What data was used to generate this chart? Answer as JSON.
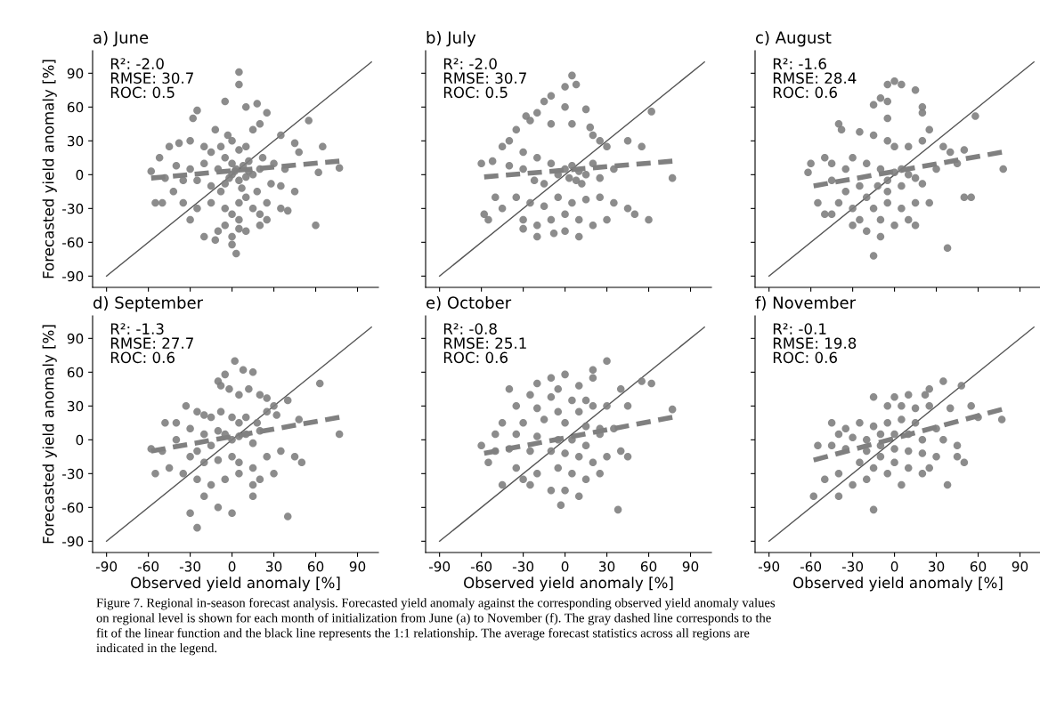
{
  "chart_data": [
    {
      "type": "scatter",
      "title": "a) June",
      "ylabel": "Forecasted yield anomaly [%]",
      "annotations": [
        "R²: -2.0\nRMSE: 30.7\nROC: 0.5"
      ],
      "xlim": [
        -100,
        105
      ],
      "ylim": [
        -100,
        110
      ],
      "xticks": [
        -90,
        -60,
        -30,
        0,
        30,
        60,
        90
      ],
      "yticks": [
        -90,
        -60,
        -30,
        0,
        30,
        60,
        90
      ],
      "tick_labels": "y",
      "grid": false,
      "legend": false,
      "series": [
        {
          "marker": "circle",
          "color": "#808080",
          "x": [
            5,
            5,
            -25,
            -28,
            -5,
            10,
            18,
            25,
            20,
            15,
            -12,
            -3,
            35,
            55,
            65,
            45,
            48,
            -45,
            -38,
            -30,
            -20,
            -15,
            -8,
            0,
            5,
            10,
            -5,
            0,
            3,
            8,
            12,
            -10,
            -20,
            -30,
            -40,
            -58,
            -52,
            -48,
            -25,
            -15,
            -5,
            5,
            10,
            15,
            20,
            28,
            35,
            45,
            62,
            77,
            -55,
            -50,
            -35,
            -25,
            -15,
            -5,
            0,
            5,
            10,
            15,
            20,
            25,
            35,
            40,
            60,
            -30,
            -10,
            -5,
            0,
            5,
            10,
            20,
            25,
            -20,
            -12,
            0,
            3,
            5,
            0,
            2,
            -2,
            7,
            12,
            -8,
            18,
            22,
            30,
            38,
            -35,
            -42
          ],
          "values": [
            91,
            80,
            57,
            50,
            65,
            60,
            63,
            55,
            45,
            40,
            40,
            35,
            35,
            48,
            25,
            28,
            20,
            25,
            28,
            30,
            25,
            20,
            25,
            30,
            22,
            25,
            15,
            10,
            5,
            8,
            3,
            5,
            10,
            5,
            8,
            3,
            15,
            -3,
            -5,
            -10,
            -8,
            -5,
            -2,
            0,
            5,
            -8,
            -10,
            -15,
            2,
            6,
            -25,
            -25,
            -25,
            -30,
            -25,
            -30,
            -35,
            -25,
            -20,
            -30,
            -35,
            -25,
            -30,
            -32,
            -45,
            -40,
            -50,
            -45,
            -55,
            -48,
            -50,
            -45,
            -40,
            -55,
            -58,
            -62,
            -70,
            -40,
            0,
            3,
            -3,
            -12,
            12,
            -15,
            -15,
            15,
            10,
            5,
            -5,
            -15
          ]
        },
        {
          "type": "line",
          "line_style": "dashed",
          "color": "#808080",
          "x": [
            -58,
            77
          ],
          "values": [
            -3,
            12
          ]
        },
        {
          "type": "line",
          "line_style": "solid",
          "color": "#555555",
          "x": [
            -90,
            100
          ],
          "values": [
            -90,
            100
          ]
        }
      ]
    },
    {
      "type": "scatter",
      "title": "b) July",
      "annotations": [
        "R²: -2.0\nRMSE: 30.7\nROC: 0.5"
      ],
      "xlim": [
        -100,
        105
      ],
      "ylim": [
        -100,
        110
      ],
      "xticks": [
        -90,
        -60,
        -30,
        0,
        30,
        60,
        90
      ],
      "yticks": [
        -90,
        -60,
        -30,
        0,
        30,
        60,
        90
      ],
      "tick_labels": false,
      "grid": false,
      "legend": false,
      "series": [
        {
          "marker": "circle",
          "color": "#808080",
          "x": [
            5,
            0,
            8,
            -10,
            -15,
            0,
            15,
            -20,
            -28,
            -25,
            -10,
            5,
            18,
            20,
            25,
            30,
            45,
            55,
            62,
            -35,
            -40,
            -45,
            -30,
            -20,
            -10,
            0,
            5,
            10,
            15,
            20,
            -5,
            3,
            8,
            12,
            -52,
            -60,
            -40,
            -30,
            -22,
            -15,
            25,
            35,
            77,
            -50,
            -45,
            -35,
            -25,
            -15,
            -5,
            5,
            15,
            25,
            35,
            50,
            -58,
            -55,
            -30,
            -20,
            -10,
            0,
            10,
            20,
            30,
            60,
            -20,
            -8,
            0,
            10,
            -30,
            45
          ],
          "values": [
            88,
            78,
            80,
            70,
            65,
            60,
            58,
            55,
            52,
            48,
            45,
            45,
            42,
            35,
            30,
            25,
            30,
            25,
            56,
            40,
            30,
            25,
            20,
            15,
            10,
            5,
            8,
            3,
            0,
            10,
            0,
            -3,
            -5,
            -8,
            12,
            10,
            8,
            5,
            -5,
            -8,
            -3,
            5,
            -3,
            -20,
            -30,
            -20,
            -25,
            -28,
            -20,
            -25,
            -22,
            -20,
            -25,
            -35,
            -35,
            -40,
            -40,
            -45,
            -40,
            -35,
            -40,
            -45,
            -40,
            -40,
            -55,
            -52,
            -50,
            -55,
            -48,
            -30
          ]
        },
        {
          "type": "line",
          "line_style": "dashed",
          "color": "#808080",
          "x": [
            -58,
            77
          ],
          "values": [
            -2,
            12
          ]
        },
        {
          "type": "line",
          "line_style": "solid",
          "color": "#555555",
          "x": [
            -90,
            100
          ],
          "values": [
            -90,
            100
          ]
        }
      ]
    },
    {
      "type": "scatter",
      "title": "c) August",
      "annotations": [
        "R²: -1.6\nRMSE: 28.4\nROC: 0.6"
      ],
      "xlim": [
        -100,
        105
      ],
      "ylim": [
        -100,
        110
      ],
      "xticks": [
        -90,
        -60,
        -30,
        0,
        30,
        60,
        90
      ],
      "yticks": [
        -90,
        -60,
        -30,
        0,
        30,
        60,
        90
      ],
      "tick_labels": false,
      "grid": false,
      "legend": false,
      "series": [
        {
          "marker": "circle",
          "color": "#808080",
          "x": [
            0,
            5,
            -5,
            15,
            -10,
            -15,
            -5,
            20,
            20,
            -5,
            -40,
            -38,
            -25,
            -15,
            -5,
            0,
            10,
            20,
            25,
            35,
            40,
            50,
            58,
            -50,
            -45,
            -35,
            -30,
            -20,
            -10,
            0,
            5,
            10,
            15,
            -5,
            -12,
            -60,
            -62,
            -45,
            -35,
            -25,
            -20,
            -5,
            5,
            20,
            30,
            45,
            78,
            -55,
            -40,
            -30,
            -15,
            -5,
            5,
            15,
            25,
            -50,
            -45,
            -25,
            -10,
            0,
            10,
            -20,
            -10,
            -15,
            38,
            50,
            55,
            -30,
            15
          ],
          "values": [
            83,
            80,
            80,
            75,
            68,
            62,
            65,
            60,
            55,
            50,
            45,
            40,
            38,
            35,
            30,
            25,
            25,
            30,
            40,
            25,
            20,
            22,
            52,
            15,
            10,
            5,
            15,
            10,
            5,
            2,
            5,
            0,
            -3,
            -5,
            -10,
            10,
            2,
            -5,
            -15,
            -10,
            -20,
            -15,
            -10,
            -8,
            5,
            10,
            5,
            -25,
            -25,
            -30,
            -30,
            -25,
            -30,
            -25,
            -25,
            -35,
            -35,
            -40,
            -40,
            -45,
            -40,
            -50,
            -55,
            -72,
            -65,
            -20,
            -20,
            -45,
            -45
          ]
        },
        {
          "type": "line",
          "line_style": "dashed",
          "color": "#808080",
          "x": [
            -58,
            77
          ],
          "values": [
            -10,
            20
          ]
        },
        {
          "type": "line",
          "line_style": "solid",
          "color": "#555555",
          "x": [
            -90,
            100
          ],
          "values": [
            -90,
            100
          ]
        }
      ]
    },
    {
      "type": "scatter",
      "title": "d) September",
      "xlabel": "Observed yield anomaly [%]",
      "ylabel": "Forecasted yield anomaly [%]",
      "annotations": [
        "R²: -1.3\nRMSE: 27.7\nROC: 0.6"
      ],
      "xlim": [
        -100,
        105
      ],
      "ylim": [
        -100,
        110
      ],
      "xticks": [
        -90,
        -60,
        -30,
        0,
        30,
        60,
        90
      ],
      "yticks": [
        -90,
        -60,
        -30,
        0,
        30,
        60,
        90
      ],
      "grid": false,
      "legend": false,
      "series": [
        {
          "marker": "circle",
          "color": "#808080",
          "x": [
            2,
            8,
            15,
            -5,
            -10,
            -8,
            -2,
            5,
            12,
            20,
            25,
            30,
            40,
            63,
            -33,
            -25,
            -20,
            -15,
            -8,
            0,
            5,
            10,
            18,
            25,
            32,
            48,
            -48,
            -40,
            -30,
            -20,
            -10,
            -5,
            0,
            5,
            10,
            15,
            20,
            -15,
            -25,
            -40,
            -58,
            -50,
            -30,
            -20,
            -10,
            0,
            5,
            15,
            25,
            35,
            45,
            50,
            77,
            -35,
            -25,
            -15,
            -5,
            5,
            15,
            20,
            30,
            -20,
            -10,
            0,
            15,
            -30,
            -25,
            40,
            -55,
            -45
          ],
          "values": [
            70,
            62,
            60,
            58,
            52,
            48,
            45,
            40,
            45,
            40,
            37,
            30,
            35,
            50,
            30,
            25,
            22,
            20,
            25,
            20,
            15,
            20,
            15,
            25,
            22,
            18,
            15,
            15,
            10,
            5,
            8,
            5,
            0,
            3,
            5,
            -3,
            8,
            -5,
            -10,
            0,
            -8,
            -10,
            -15,
            -20,
            -18,
            -15,
            -20,
            -25,
            -15,
            -10,
            -15,
            -20,
            5,
            -30,
            -35,
            -40,
            -35,
            -30,
            -40,
            -35,
            -30,
            -50,
            -60,
            -65,
            -50,
            -65,
            -78,
            -68,
            -30,
            -25
          ]
        },
        {
          "type": "line",
          "line_style": "dashed",
          "color": "#808080",
          "x": [
            -58,
            77
          ],
          "values": [
            -10,
            20
          ]
        },
        {
          "type": "line",
          "line_style": "solid",
          "color": "#555555",
          "x": [
            -90,
            100
          ],
          "values": [
            -90,
            100
          ]
        }
      ]
    },
    {
      "type": "scatter",
      "title": "e) October",
      "xlabel": "Observed yield anomaly [%]",
      "annotations": [
        "R²: -0.8\nRMSE: 25.1\nROC: 0.6"
      ],
      "xlim": [
        -100,
        105
      ],
      "ylim": [
        -100,
        110
      ],
      "xticks": [
        -90,
        -60,
        -30,
        0,
        30,
        60,
        90
      ],
      "yticks": [
        -90,
        -60,
        -30,
        0,
        30,
        60,
        90
      ],
      "tick_labels": "x",
      "grid": false,
      "legend": false,
      "series": [
        {
          "marker": "circle",
          "color": "#808080",
          "x": [
            30,
            20,
            0,
            -10,
            20,
            40,
            55,
            62,
            -20,
            -5,
            10,
            -40,
            -25,
            -10,
            5,
            15,
            -35,
            -20,
            -5,
            10,
            20,
            30,
            45,
            -45,
            -30,
            -15,
            0,
            15,
            25,
            -50,
            -35,
            -20,
            -5,
            5,
            15,
            25,
            35,
            -60,
            -50,
            -40,
            -25,
            -10,
            0,
            10,
            20,
            30,
            40,
            45,
            77,
            -55,
            -35,
            -20,
            -5,
            5,
            15,
            -25,
            -10,
            0,
            10,
            -3,
            38,
            -45,
            -30,
            25
          ],
          "values": [
            70,
            62,
            58,
            55,
            55,
            45,
            52,
            50,
            50,
            45,
            48,
            45,
            40,
            38,
            35,
            35,
            30,
            28,
            25,
            25,
            30,
            30,
            30,
            15,
            15,
            18,
            15,
            12,
            10,
            5,
            5,
            3,
            0,
            0,
            -5,
            5,
            10,
            -5,
            -10,
            -8,
            -10,
            -10,
            -12,
            -15,
            -20,
            -15,
            -10,
            -15,
            27,
            -20,
            -25,
            -30,
            -25,
            -30,
            -35,
            -40,
            -45,
            -45,
            -50,
            -58,
            -62,
            -40,
            -35,
            -30
          ]
        },
        {
          "type": "line",
          "line_style": "dashed",
          "color": "#808080",
          "x": [
            -58,
            77
          ],
          "values": [
            -12,
            20
          ]
        },
        {
          "type": "line",
          "line_style": "solid",
          "color": "#555555",
          "x": [
            -90,
            100
          ],
          "values": [
            -90,
            100
          ]
        }
      ]
    },
    {
      "type": "scatter",
      "title": "f) November",
      "xlabel": "Observed yield anomaly [%]",
      "annotations": [
        "R²: -0.1\nRMSE: 19.8\nROC: 0.6",
        "Figure 7. Regional in-season forecast analysis. Forecasted yield anomaly against the corresponding observed yield anomaly values\non regional level is shown for each month of initialization from June (a) to November (f). The gray dashed line corresponds to the\nfit of the linear function and the black line represents the 1:1 relationship. The average forecast statistics across all regions are\nindicated in the legend."
      ],
      "xlim": [
        -100,
        105
      ],
      "ylim": [
        -100,
        110
      ],
      "xticks": [
        -90,
        -60,
        -30,
        0,
        30,
        60,
        90
      ],
      "yticks": [
        -90,
        -60,
        -30,
        0,
        30,
        60,
        90
      ],
      "tick_labels": "x",
      "grid": false,
      "legend": false,
      "series": [
        {
          "marker": "circle",
          "color": "#808080",
          "x": [
            48,
            35,
            25,
            22,
            10,
            0,
            -15,
            -5,
            5,
            15,
            25,
            40,
            55,
            60,
            77,
            -45,
            -35,
            -25,
            -15,
            -5,
            5,
            15,
            30,
            -40,
            -30,
            -20,
            -10,
            0,
            10,
            20,
            35,
            45,
            -55,
            -45,
            -35,
            -20,
            -10,
            0,
            10,
            20,
            30,
            -58,
            -50,
            -40,
            -25,
            -15,
            0,
            10,
            20,
            -30,
            -20,
            -5,
            -15,
            38,
            -40,
            45,
            50,
            -10,
            5,
            25
          ],
          "values": [
            48,
            52,
            45,
            40,
            40,
            38,
            38,
            30,
            30,
            28,
            30,
            28,
            30,
            20,
            18,
            15,
            10,
            15,
            12,
            15,
            18,
            15,
            10,
            5,
            2,
            0,
            5,
            5,
            5,
            0,
            0,
            -5,
            -5,
            -5,
            -8,
            -10,
            -5,
            -8,
            -10,
            -12,
            -15,
            -50,
            -35,
            -30,
            -20,
            -25,
            -20,
            -25,
            -30,
            -40,
            -35,
            -30,
            -62,
            -40,
            -50,
            -15,
            -20,
            -15,
            -40,
            -25
          ]
        },
        {
          "type": "line",
          "line_style": "dashed",
          "color": "#808080",
          "x": [
            -58,
            77
          ],
          "values": [
            -18,
            27
          ]
        },
        {
          "type": "line",
          "line_style": "solid",
          "color": "#555555",
          "x": [
            -90,
            100
          ],
          "values": [
            -90,
            100
          ]
        }
      ]
    }
  ]
}
